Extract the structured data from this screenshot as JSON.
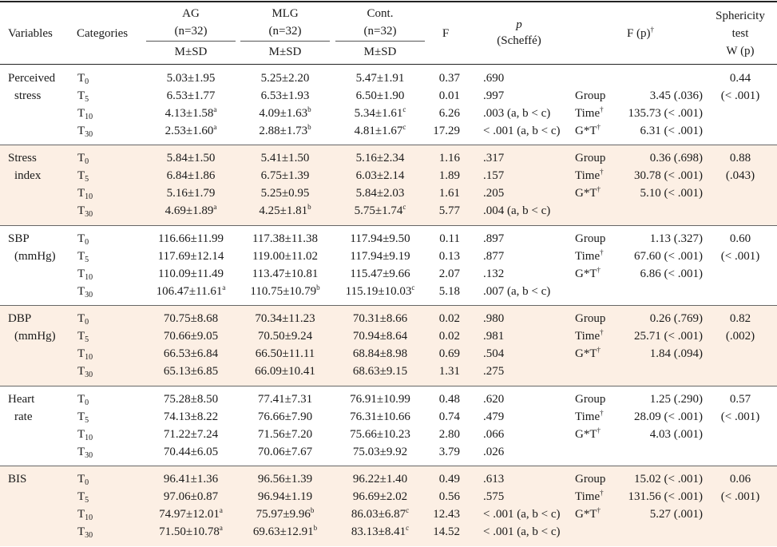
{
  "header": {
    "variables": "Variables",
    "categories": "Categories",
    "groups": [
      {
        "name": "AG",
        "n": "(n=32)",
        "stat": "M±SD"
      },
      {
        "name": "MLG",
        "n": "(n=32)",
        "stat": "M±SD"
      },
      {
        "name": "Cont.",
        "n": "(n=32)",
        "stat": "M±SD"
      }
    ],
    "f": "F",
    "p": "p",
    "scheffe": "(Scheffé)",
    "f_p": "F (p)",
    "dagger": "†",
    "sphericity": [
      "Sphericity",
      "test",
      "W (p)"
    ]
  },
  "times": [
    {
      "t": "T",
      "s": "0"
    },
    {
      "t": "T",
      "s": "5"
    },
    {
      "t": "T",
      "s": "10"
    },
    {
      "t": "T",
      "s": "30"
    }
  ],
  "sections": [
    {
      "label": [
        "Perceived",
        "stress"
      ],
      "rows": [
        {
          "ag": "5.03±1.95",
          "ag_sup": "",
          "mlg": "5.25±2.20",
          "mlg_sup": "",
          "cont": "5.47±1.91",
          "cont_sup": "",
          "f": "0.37",
          "p": ".690"
        },
        {
          "ag": "6.53±1.77",
          "ag_sup": "",
          "mlg": "6.53±1.93",
          "mlg_sup": "",
          "cont": "6.50±1.90",
          "cont_sup": "",
          "f": "0.01",
          "p": ".997"
        },
        {
          "ag": "4.13±1.58",
          "ag_sup": "a",
          "mlg": "4.09±1.63",
          "mlg_sup": "b",
          "cont": "5.34±1.61",
          "cont_sup": "c",
          "f": "6.26",
          "p": ".003 (a, b < c)"
        },
        {
          "ag": "2.53±1.60",
          "ag_sup": "a",
          "mlg": "2.88±1.73",
          "mlg_sup": "b",
          "cont": "4.81±1.67",
          "cont_sup": "c",
          "f": "17.29",
          "p": "< .001 (a, b < c)"
        }
      ],
      "effects_start": 1,
      "effects": [
        {
          "label": "Group",
          "dag": false,
          "value": "3.45 (.036)"
        },
        {
          "label": "Time",
          "dag": true,
          "value": "135.73 (< .001)"
        },
        {
          "label": "G*T",
          "dag": true,
          "value": "6.31 (< .001)"
        }
      ],
      "w": "0.44",
      "wp": "(< .001)"
    },
    {
      "label": [
        "Stress",
        "index"
      ],
      "rows": [
        {
          "ag": "5.84±1.50",
          "ag_sup": "",
          "mlg": "5.41±1.50",
          "mlg_sup": "",
          "cont": "5.16±2.34",
          "cont_sup": "",
          "f": "1.16",
          "p": ".317"
        },
        {
          "ag": "6.84±1.86",
          "ag_sup": "",
          "mlg": "6.75±1.39",
          "mlg_sup": "",
          "cont": "6.03±2.14",
          "cont_sup": "",
          "f": "1.89",
          "p": ".157"
        },
        {
          "ag": "5.16±1.79",
          "ag_sup": "",
          "mlg": "5.25±0.95",
          "mlg_sup": "",
          "cont": "5.84±2.03",
          "cont_sup": "",
          "f": "1.61",
          "p": ".205"
        },
        {
          "ag": "4.69±1.89",
          "ag_sup": "a",
          "mlg": "4.25±1.81",
          "mlg_sup": "b",
          "cont": "5.75±1.74",
          "cont_sup": "c",
          "f": "5.77",
          "p": ".004 (a, b < c)"
        }
      ],
      "effects_start": 0,
      "effects": [
        {
          "label": "Group",
          "dag": false,
          "value": "0.36 (.698)"
        },
        {
          "label": "Time",
          "dag": true,
          "value": "30.78 (< .001)"
        },
        {
          "label": "G*T",
          "dag": true,
          "value": "5.10 (< .001)"
        }
      ],
      "w": "0.88",
      "wp": "(.043)"
    },
    {
      "label": [
        "SBP",
        "(mmHg)"
      ],
      "rows": [
        {
          "ag": "116.66±11.99",
          "ag_sup": "",
          "mlg": "117.38±11.38",
          "mlg_sup": "",
          "cont": "117.94±9.50",
          "cont_sup": "",
          "f": "0.11",
          "p": ".897"
        },
        {
          "ag": "117.69±12.14",
          "ag_sup": "",
          "mlg": "119.00±11.02",
          "mlg_sup": "",
          "cont": "117.94±9.19",
          "cont_sup": "",
          "f": "0.13",
          "p": ".877"
        },
        {
          "ag": "110.09±11.49",
          "ag_sup": "",
          "mlg": "113.47±10.81",
          "mlg_sup": "",
          "cont": "115.47±9.66",
          "cont_sup": "",
          "f": "2.07",
          "p": ".132"
        },
        {
          "ag": "106.47±11.61",
          "ag_sup": "a",
          "mlg": "110.75±10.79",
          "mlg_sup": "b",
          "cont": "115.19±10.03",
          "cont_sup": "c",
          "f": "5.18",
          "p": ".007 (a, b < c)"
        }
      ],
      "effects_start": 0,
      "effects": [
        {
          "label": "Group",
          "dag": false,
          "value": "1.13 (.327)"
        },
        {
          "label": "Time",
          "dag": true,
          "value": "67.60 (< .001)"
        },
        {
          "label": "G*T",
          "dag": true,
          "value": "6.86 (< .001)"
        }
      ],
      "w": "0.60",
      "wp": "(< .001)"
    },
    {
      "label": [
        "DBP",
        "(mmHg)"
      ],
      "rows": [
        {
          "ag": "70.75±8.68",
          "ag_sup": "",
          "mlg": "70.34±11.23",
          "mlg_sup": "",
          "cont": "70.31±8.66",
          "cont_sup": "",
          "f": "0.02",
          "p": ".980"
        },
        {
          "ag": "70.66±9.05",
          "ag_sup": "",
          "mlg": "70.50±9.24",
          "mlg_sup": "",
          "cont": "70.94±8.64",
          "cont_sup": "",
          "f": "0.02",
          "p": ".981"
        },
        {
          "ag": "66.53±6.84",
          "ag_sup": "",
          "mlg": "66.50±11.11",
          "mlg_sup": "",
          "cont": "68.84±8.98",
          "cont_sup": "",
          "f": "0.69",
          "p": ".504"
        },
        {
          "ag": "65.13±6.85",
          "ag_sup": "",
          "mlg": "66.09±10.41",
          "mlg_sup": "",
          "cont": "68.63±9.15",
          "cont_sup": "",
          "f": "1.31",
          "p": ".275"
        }
      ],
      "effects_start": 0,
      "effects": [
        {
          "label": "Group",
          "dag": false,
          "value": "0.26 (.769)"
        },
        {
          "label": "Time",
          "dag": true,
          "value": "25.71 (< .001)"
        },
        {
          "label": "G*T",
          "dag": true,
          "value": "1.84 (.094)"
        }
      ],
      "w": "0.82",
      "wp": "(.002)"
    },
    {
      "label": [
        "Heart",
        "rate"
      ],
      "rows": [
        {
          "ag": "75.28±8.50",
          "ag_sup": "",
          "mlg": "77.41±7.31",
          "mlg_sup": "",
          "cont": "76.91±10.99",
          "cont_sup": "",
          "f": "0.48",
          "p": ".620"
        },
        {
          "ag": "74.13±8.22",
          "ag_sup": "",
          "mlg": "76.66±7.90",
          "mlg_sup": "",
          "cont": "76.31±10.66",
          "cont_sup": "",
          "f": "0.74",
          "p": ".479"
        },
        {
          "ag": "71.22±7.24",
          "ag_sup": "",
          "mlg": "71.56±7.20",
          "mlg_sup": "",
          "cont": "75.66±10.23",
          "cont_sup": "",
          "f": "2.80",
          "p": ".066"
        },
        {
          "ag": "70.44±6.05",
          "ag_sup": "",
          "mlg": "70.06±7.67",
          "mlg_sup": "",
          "cont": "75.03±9.92",
          "cont_sup": "",
          "f": "3.79",
          "p": ".026"
        }
      ],
      "effects_start": 0,
      "effects": [
        {
          "label": "Group",
          "dag": false,
          "value": "1.25 (.290)"
        },
        {
          "label": "Time",
          "dag": true,
          "value": "28.09 (< .001)"
        },
        {
          "label": "G*T",
          "dag": true,
          "value": "4.03 (.001)"
        }
      ],
      "w": "0.57",
      "wp": "(< .001)"
    },
    {
      "label": [
        "BIS"
      ],
      "rows": [
        {
          "ag": "96.41±1.36",
          "ag_sup": "",
          "mlg": "96.56±1.39",
          "mlg_sup": "",
          "cont": "96.22±1.40",
          "cont_sup": "",
          "f": "0.49",
          "p": ".613"
        },
        {
          "ag": "97.06±0.87",
          "ag_sup": "",
          "mlg": "96.94±1.19",
          "mlg_sup": "",
          "cont": "96.69±2.02",
          "cont_sup": "",
          "f": "0.56",
          "p": ".575"
        },
        {
          "ag": "74.97±12.01",
          "ag_sup": "a",
          "mlg": "75.97±9.96",
          "mlg_sup": "b",
          "cont": "86.03±6.87",
          "cont_sup": "c",
          "f": "12.43",
          "p": "< .001 (a, b < c)"
        },
        {
          "ag": "71.50±10.78",
          "ag_sup": "a",
          "mlg": "69.63±12.91",
          "mlg_sup": "b",
          "cont": "83.13±8.41",
          "cont_sup": "c",
          "f": "14.52",
          "p": "< .001 (a, b < c)"
        }
      ],
      "effects_start": 0,
      "effects": [
        {
          "label": "Group",
          "dag": false,
          "value": "15.02 (< .001)"
        },
        {
          "label": "Time",
          "dag": true,
          "value": "131.56 (< .001)"
        },
        {
          "label": "G*T",
          "dag": true,
          "value": "5.27 (.001)"
        }
      ],
      "w": "0.06",
      "wp": "(< .001)"
    }
  ]
}
